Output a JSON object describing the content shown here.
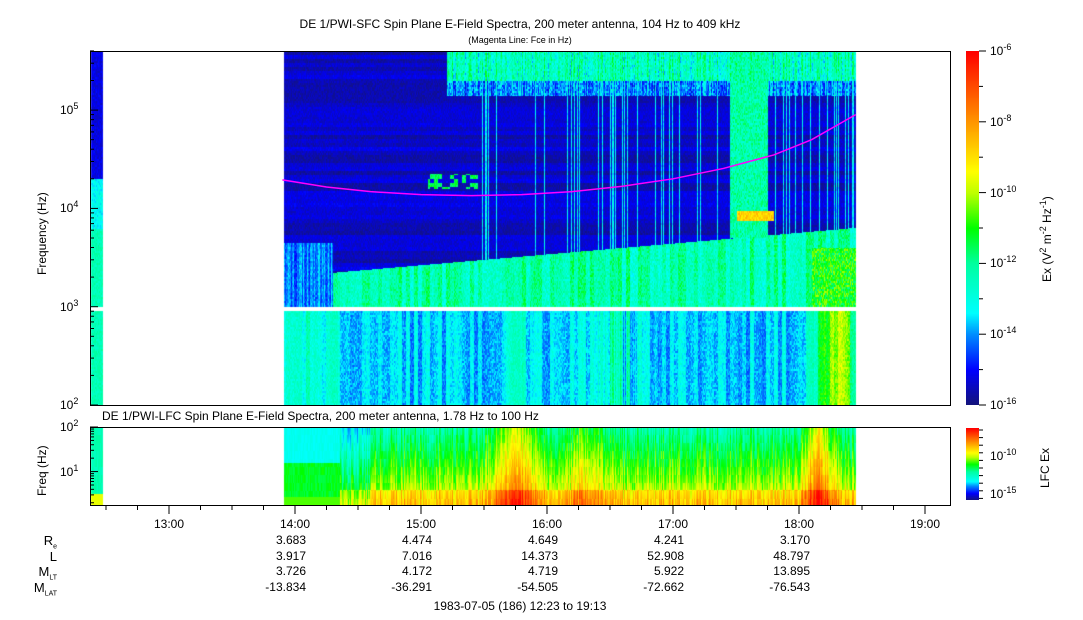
{
  "chart_data": [
    {
      "type": "heatmap",
      "title": "DE 1/PWI-SFC  Spin Plane E-Field Spectra, 200 meter antenna, 104 Hz to 409 kHz",
      "subtitle": "(Magenta Line: Fce in Hz)",
      "ylabel": "Frequency (Hz)",
      "yscale": "log",
      "ylim": [
        104,
        409000
      ],
      "ytick_labels": [
        {
          "base": "10",
          "exp": "2"
        },
        {
          "base": "10",
          "exp": "3"
        },
        {
          "base": "10",
          "exp": "4"
        },
        {
          "base": "10",
          "exp": "5"
        }
      ],
      "xlim": [
        "12:23",
        "19:13"
      ],
      "data_coverage": [
        [
          "12:23",
          "12:29"
        ],
        [
          "13:54",
          "18:27"
        ]
      ],
      "colorbar": {
        "label": "Ex (V2 m-2 Hz-1)",
        "label_parts": {
          "a": "Ex (V",
          "b": "2",
          "c": " m",
          "d": "-2",
          "e": " Hz",
          "f": "-1",
          "g": ")"
        },
        "scale": "log",
        "range": [
          1e-16,
          1e-06
        ],
        "tick_labels": [
          {
            "base": "10",
            "exp": "-6"
          },
          {
            "base": "10",
            "exp": "-8"
          },
          {
            "base": "10",
            "exp": "-10"
          },
          {
            "base": "10",
            "exp": "-12"
          },
          {
            "base": "10",
            "exp": "-14"
          },
          {
            "base": "10",
            "exp": "-16"
          }
        ]
      },
      "fce_line": {
        "color": "#ff00ff",
        "time_hours": [
          13.9,
          14.25,
          14.6,
          15.0,
          15.4,
          15.8,
          16.2,
          16.6,
          17.0,
          17.4,
          17.8,
          18.1,
          18.45
        ],
        "freq_hz": [
          19500,
          16500,
          14800,
          13800,
          13500,
          13800,
          14800,
          16800,
          20000,
          25500,
          35000,
          50000,
          90000
        ]
      }
    },
    {
      "type": "heatmap",
      "title": "DE 1/PWI-LFC  Spin Plane E-Field Spectra, 200 meter antenna, 1.78 Hz to 100 Hz",
      "ylabel": "Freq (Hz)",
      "yscale": "log",
      "ylim": [
        1.78,
        100
      ],
      "ytick_labels": [
        {
          "base": "10",
          "exp": "1"
        },
        {
          "base": "10",
          "exp": "2"
        }
      ],
      "colorbar": {
        "label": "LFC Ex",
        "scale": "log",
        "tick_labels": [
          {
            "base": "10",
            "exp": "-10"
          },
          {
            "base": "10",
            "exp": "-15"
          }
        ]
      }
    }
  ],
  "xaxis": {
    "tick_labels": [
      "13:00",
      "14:00",
      "15:00",
      "16:00",
      "17:00",
      "18:00",
      "19:00"
    ]
  },
  "ephemeris": {
    "row_labels": [
      {
        "main": "R",
        "sub": "e"
      },
      {
        "main": "L",
        "sub": ""
      },
      {
        "main": "M",
        "sub": "LT"
      },
      {
        "main": "M",
        "sub": "LAT"
      }
    ],
    "columns": [
      "14:00",
      "15:00",
      "16:00",
      "17:00",
      "18:00"
    ],
    "rows": [
      [
        "3.683",
        "4.474",
        "4.649",
        "4.241",
        "3.170"
      ],
      [
        "3.917",
        "7.016",
        "14.373",
        "52.908",
        "48.797"
      ],
      [
        "3.726",
        "4.172",
        "4.719",
        "5.922",
        "13.895"
      ],
      [
        "-13.834",
        "-36.291",
        "-54.505",
        "-72.662",
        "-76.543"
      ]
    ]
  },
  "footer": "1983-07-05 (186) 12:23 to 19:13"
}
